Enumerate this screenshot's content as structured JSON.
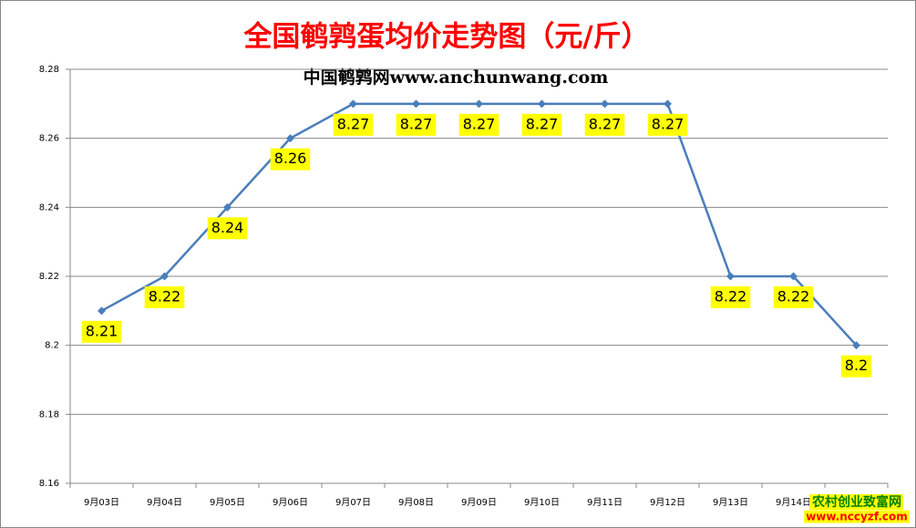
{
  "chart_data": {
    "type": "line",
    "title": "全国鹌鹑蛋均价走势图（元/斤）",
    "subtitle": "中国鹌鹑网www.anchunwang.com",
    "watermark": [
      "农村创业致富网",
      "www.nccyzf.com"
    ],
    "categories": [
      "9月03日",
      "9月04日",
      "9月05日",
      "9月06日",
      "9月07日",
      "9月08日",
      "9月09日",
      "9月10日",
      "9月11日",
      "9月12日",
      "9月13日",
      "9月14日",
      null
    ],
    "series": [
      {
        "color": "#4a7ebb",
        "values": [
          8.21,
          8.22,
          8.24,
          8.26,
          8.27,
          8.27,
          8.27,
          8.27,
          8.27,
          8.27,
          8.22,
          8.22,
          8.2
        ]
      }
    ],
    "ylim": [
      8.16,
      8.28
    ],
    "yticks": [
      8.16,
      8.18,
      8.2,
      8.22,
      8.24,
      8.26,
      8.28
    ],
    "grid": true,
    "label_color": "#ffff00"
  }
}
